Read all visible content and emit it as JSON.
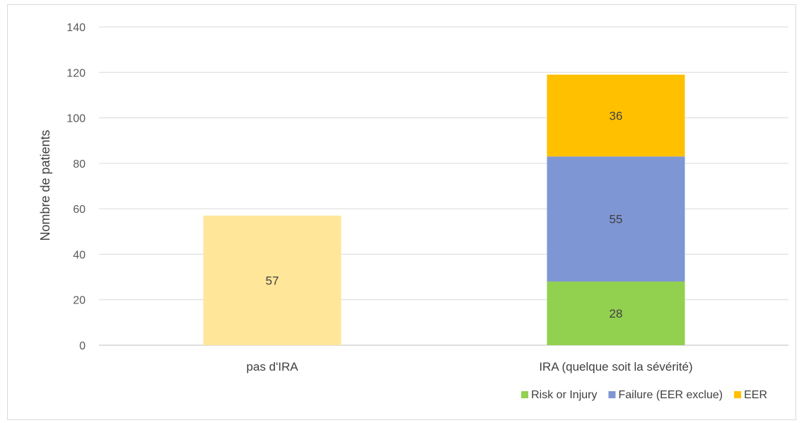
{
  "chart_data": {
    "type": "bar",
    "stacked": true,
    "title": "",
    "xlabel": "",
    "ylabel": "Nombre de patients",
    "ylim": [
      0,
      140
    ],
    "yticks": [
      0,
      20,
      40,
      60,
      80,
      100,
      120,
      140
    ],
    "grid": true,
    "legend_position": "bottom-right",
    "categories": [
      "pas d'IRA",
      "IRA (quelque soit la sévérité)"
    ],
    "series": [
      {
        "name": "",
        "color": "#FFE699",
        "values": [
          57,
          null
        ],
        "labels": [
          "57",
          ""
        ]
      },
      {
        "name": "Risk or Injury",
        "color": "#92D050",
        "values": [
          null,
          28
        ],
        "labels": [
          "",
          "28"
        ]
      },
      {
        "name": "Failure (EER exclue)",
        "color": "#7F96D4",
        "values": [
          null,
          55
        ],
        "labels": [
          "",
          "55"
        ]
      },
      {
        "name": "EER",
        "color": "#FFC000",
        "values": [
          null,
          36
        ],
        "labels": [
          "",
          "36"
        ]
      }
    ]
  }
}
